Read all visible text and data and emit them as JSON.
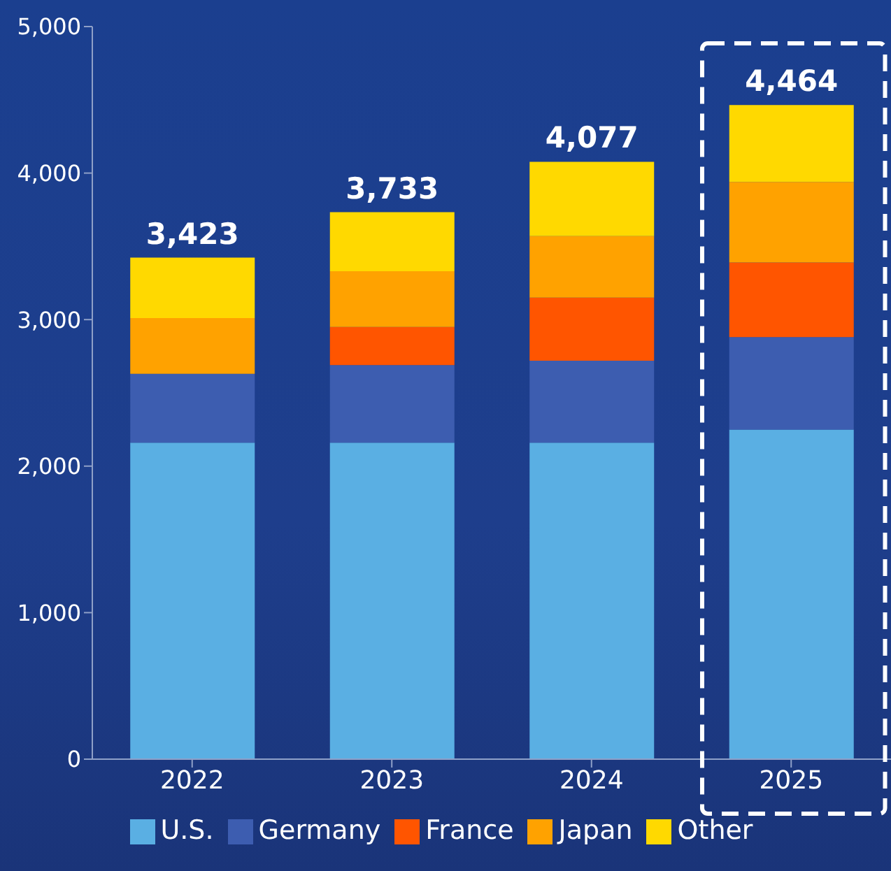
{
  "chart_data": {
    "type": "bar",
    "stacked": true,
    "categories": [
      "2022",
      "2023",
      "2024",
      "2025"
    ],
    "series": [
      {
        "name": "U.S.",
        "color": "#5aafe3",
        "values": [
          2160,
          2160,
          2160,
          2250
        ]
      },
      {
        "name": "Germany",
        "color": "#3d5db0",
        "values": [
          470,
          530,
          560,
          630
        ]
      },
      {
        "name": "France",
        "color": "#ff5500",
        "values": [
          null,
          260,
          430,
          510
        ]
      },
      {
        "name": "Japan",
        "color": "#ffa200",
        "values": [
          380,
          380,
          420,
          550
        ]
      },
      {
        "name": "Other",
        "color": "#ffd900",
        "values": [
          413,
          403,
          507,
          524
        ]
      }
    ],
    "totals": [
      "3,423",
      "3,733",
      "4,077",
      "4,464"
    ],
    "ylim": [
      0,
      5000
    ],
    "yticks": [
      {
        "value": 0,
        "label": "0"
      },
      {
        "value": 1000,
        "label": "1,000"
      },
      {
        "value": 2000,
        "label": "2,000"
      },
      {
        "value": 3000,
        "label": "3,000"
      },
      {
        "value": 4000,
        "label": "4,000"
      },
      {
        "value": 5000,
        "label": "5,000"
      }
    ],
    "grid": false,
    "legend": "bottom"
  }
}
